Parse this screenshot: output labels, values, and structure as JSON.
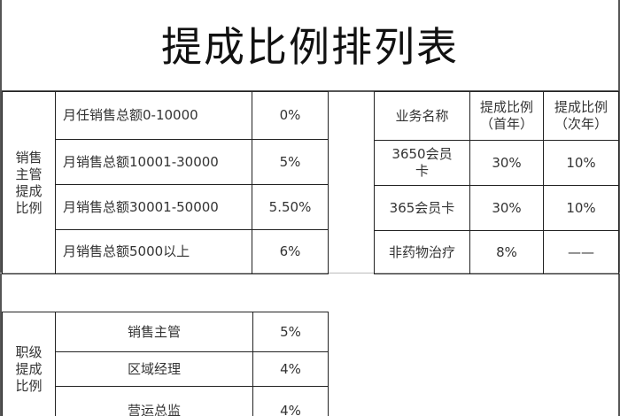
{
  "title": "提成比例排列表",
  "sales_supervisor": {
    "label": "销售主管提成比例",
    "rows": [
      {
        "desc": "月任销售总额0-10000",
        "rate": "0%"
      },
      {
        "desc": "月销售总额10001-30000",
        "rate": "5%"
      },
      {
        "desc": "月销售总额30001-50000",
        "rate": "5.50%"
      },
      {
        "desc": "月销售总额5000以上",
        "rate": "6%"
      }
    ]
  },
  "business": {
    "headers": [
      "业务名称",
      "提成比例（首年）",
      "提成比例（次年）"
    ],
    "rows": [
      [
        "3650会员卡",
        "30%",
        "10%"
      ],
      [
        "365会员卡",
        "30%",
        "10%"
      ],
      [
        "非药物治疗",
        "8%",
        "——"
      ]
    ]
  },
  "rank": {
    "label": "职级提成比例",
    "rows": [
      {
        "name": "销售主管",
        "rate": "5%"
      },
      {
        "name": "区域经理",
        "rate": "4%"
      },
      {
        "name": "营运总监",
        "rate": "4%"
      }
    ]
  }
}
